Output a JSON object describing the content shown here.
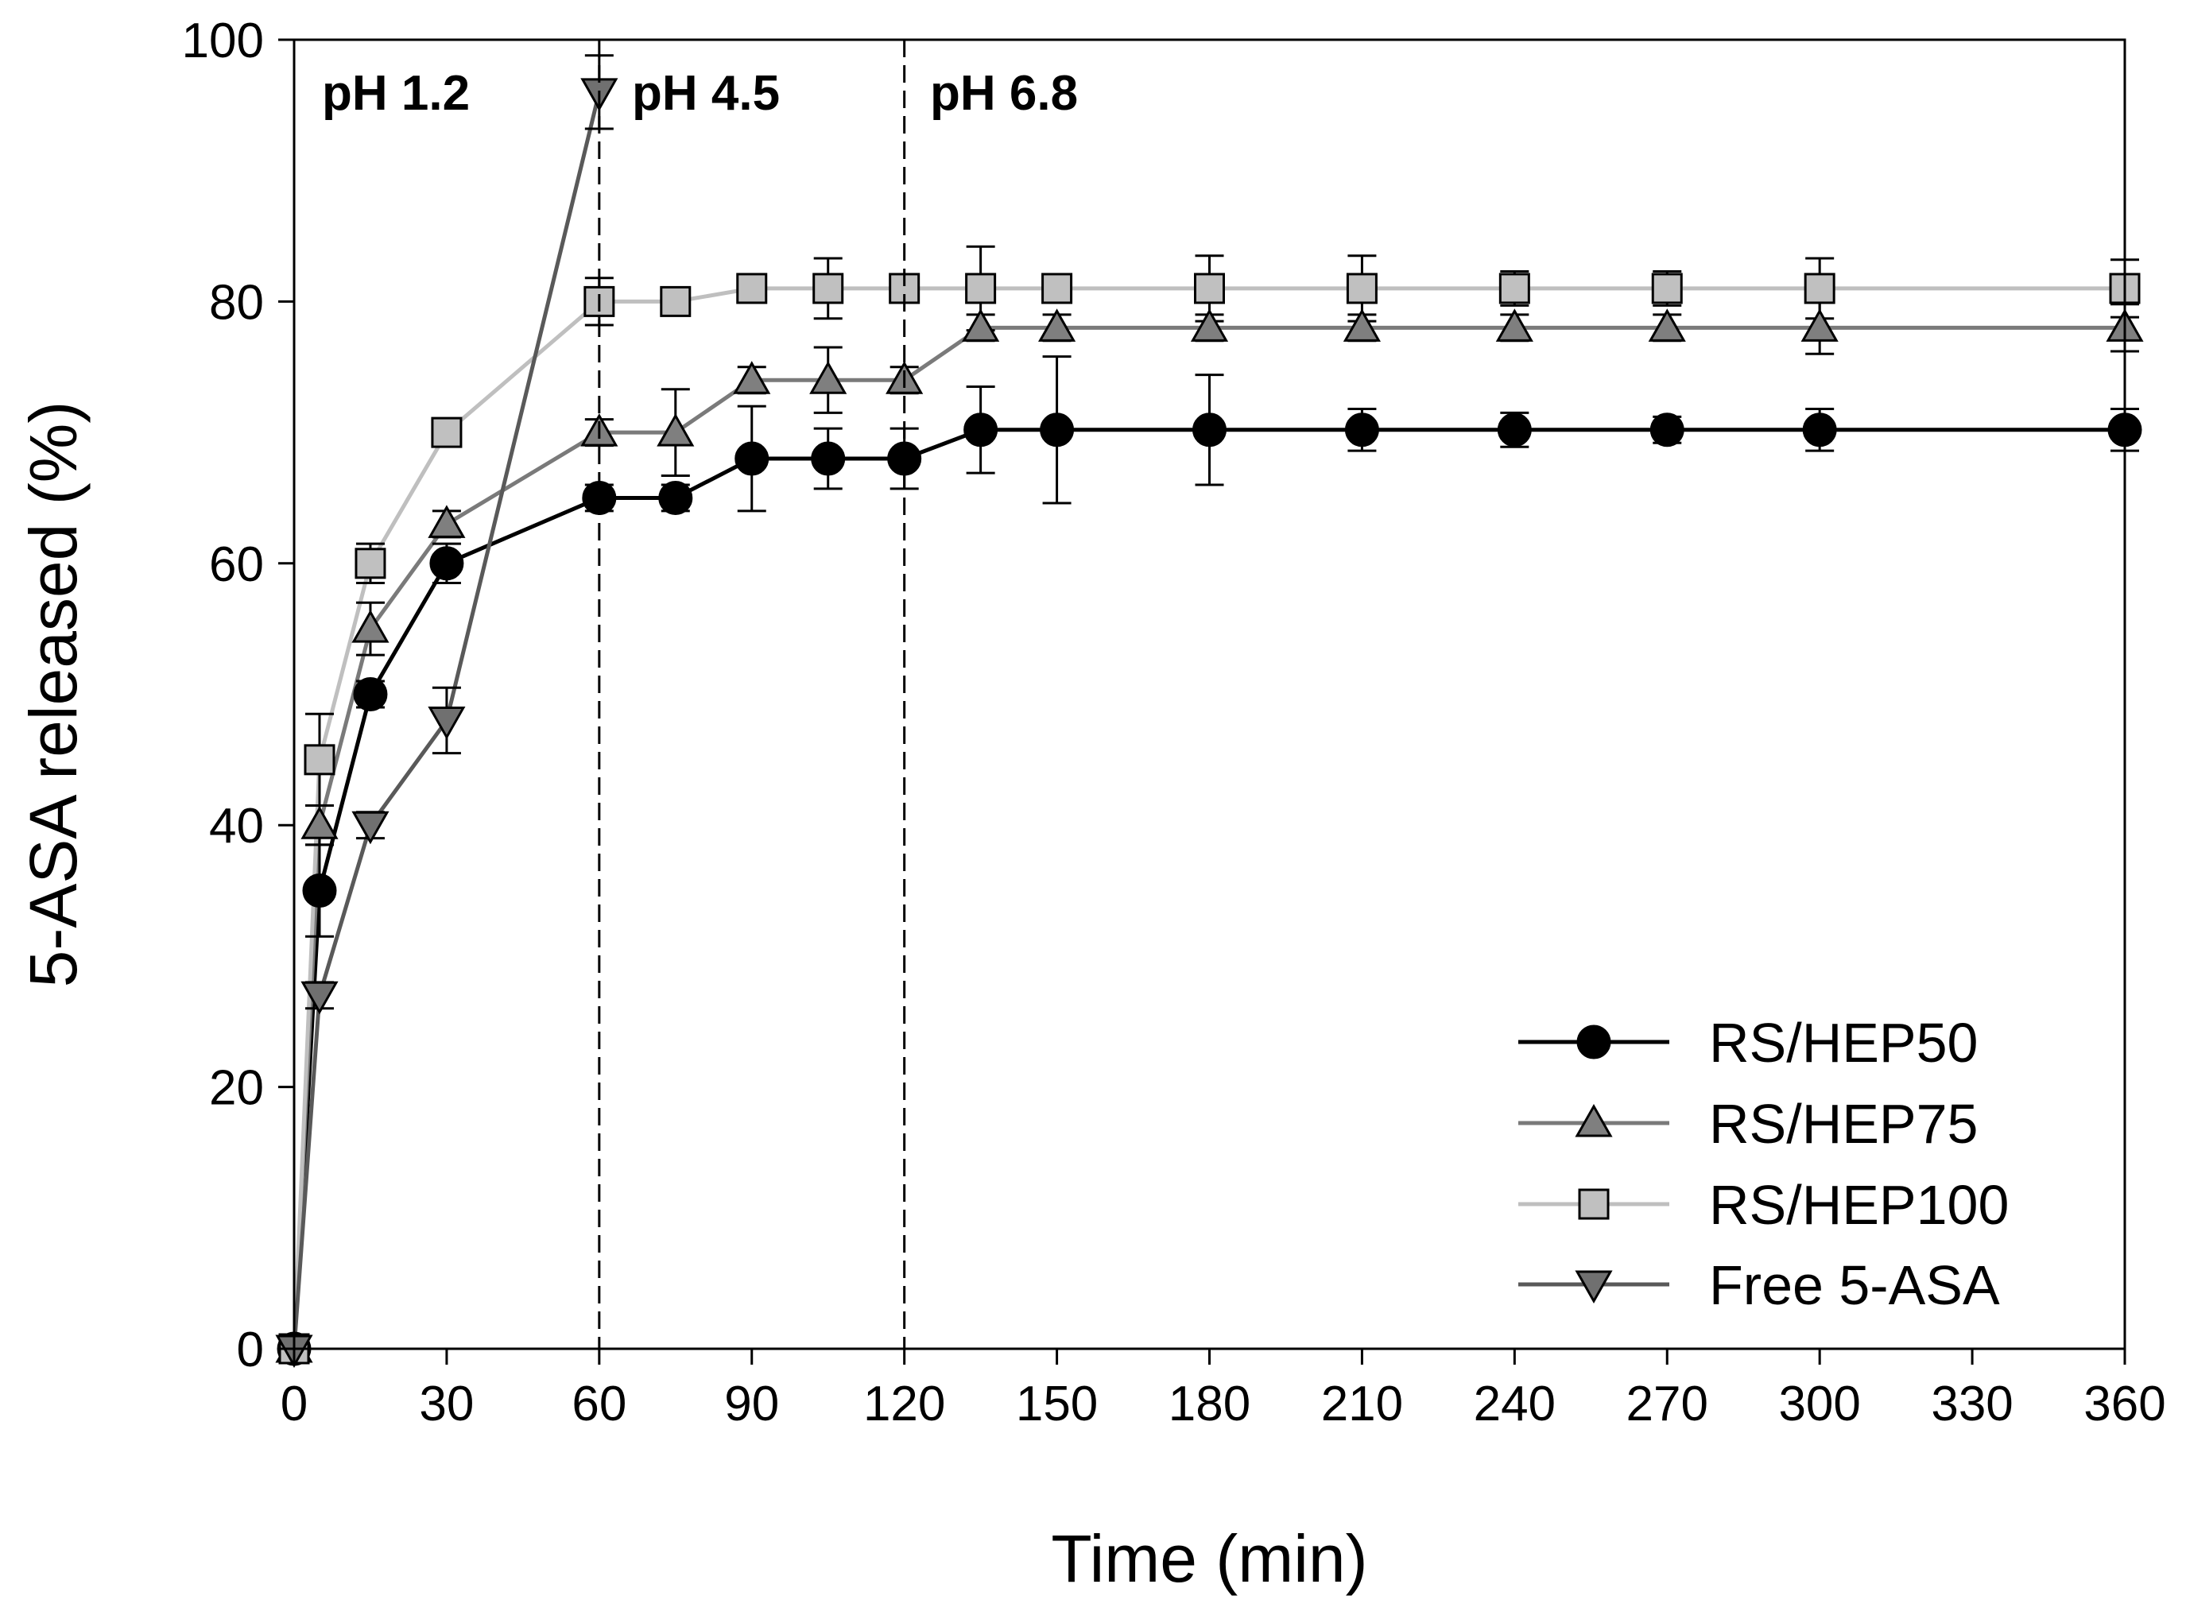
{
  "chart_data": {
    "type": "line",
    "xlabel": "Time (min)",
    "ylabel": "5-ASA released (%)",
    "xlim": [
      0,
      360
    ],
    "ylim": [
      0,
      100
    ],
    "xticks": [
      0,
      30,
      60,
      90,
      120,
      150,
      180,
      210,
      240,
      270,
      300,
      330,
      360
    ],
    "yticks": [
      0,
      20,
      40,
      60,
      80,
      100
    ],
    "grid": false,
    "legend_position": "bottom-right",
    "ph_markers": [
      {
        "label": "pH 1.2",
        "x": 0
      },
      {
        "label": "pH 4.5",
        "x": 60
      },
      {
        "label": "pH 6.8",
        "x": 120
      }
    ],
    "series": [
      {
        "name": "RS/HEP50",
        "marker": "circle",
        "line_color": "#000000",
        "marker_fill": "#000000",
        "x": [
          0,
          5,
          15,
          30,
          60,
          75,
          90,
          105,
          120,
          135,
          150,
          180,
          210,
          240,
          270,
          300,
          360
        ],
        "values": [
          0,
          35,
          50,
          60,
          65,
          65,
          68,
          68,
          68,
          70.2,
          70.2,
          70.2,
          70.2,
          70.2,
          70.2,
          70.2,
          70.2
        ],
        "errors": [
          0,
          3.5,
          1,
          1.5,
          1,
          1,
          4,
          2.3,
          2.3,
          3.3,
          5.6,
          4.2,
          1.6,
          1.3,
          1,
          1.6,
          1.6
        ]
      },
      {
        "name": "RS/HEP75",
        "marker": "triangle-up",
        "line_color": "#7a7a7a",
        "marker_fill": "#7f7f7f",
        "x": [
          0,
          5,
          15,
          30,
          60,
          75,
          90,
          105,
          120,
          135,
          150,
          180,
          210,
          240,
          270,
          300,
          360
        ],
        "values": [
          0,
          40,
          55,
          63,
          70,
          70,
          74,
          74,
          74,
          78,
          78,
          78,
          78,
          78,
          78,
          78,
          78
        ],
        "errors": [
          0,
          1.5,
          2,
          1,
          1,
          3.3,
          1,
          2.5,
          1,
          1,
          1,
          1,
          1,
          1,
          1,
          2,
          1.8
        ]
      },
      {
        "name": "RS/HEP100",
        "marker": "square",
        "line_color": "#bfbfbf",
        "marker_fill": "#c0c0c0",
        "x": [
          0,
          5,
          15,
          30,
          60,
          75,
          90,
          105,
          120,
          135,
          150,
          180,
          210,
          240,
          270,
          300,
          360
        ],
        "values": [
          0,
          45,
          60,
          70,
          80,
          80,
          81,
          81,
          81,
          81,
          81,
          81,
          81,
          81,
          81,
          81,
          81
        ],
        "errors": [
          0,
          3.5,
          1.5,
          1,
          1.8,
          1,
          1,
          2.3,
          1,
          3.2,
          1,
          2.5,
          2.5,
          1.3,
          1.3,
          2.3,
          2.2
        ]
      },
      {
        "name": "Free 5-ASA",
        "marker": "triangle-down",
        "line_color": "#595959",
        "marker_fill": "#707070",
        "x": [
          0,
          5,
          15,
          30,
          60
        ],
        "values": [
          0,
          27,
          40,
          48,
          96
        ],
        "errors": [
          0,
          1,
          1,
          2.5,
          2.8
        ]
      }
    ]
  }
}
